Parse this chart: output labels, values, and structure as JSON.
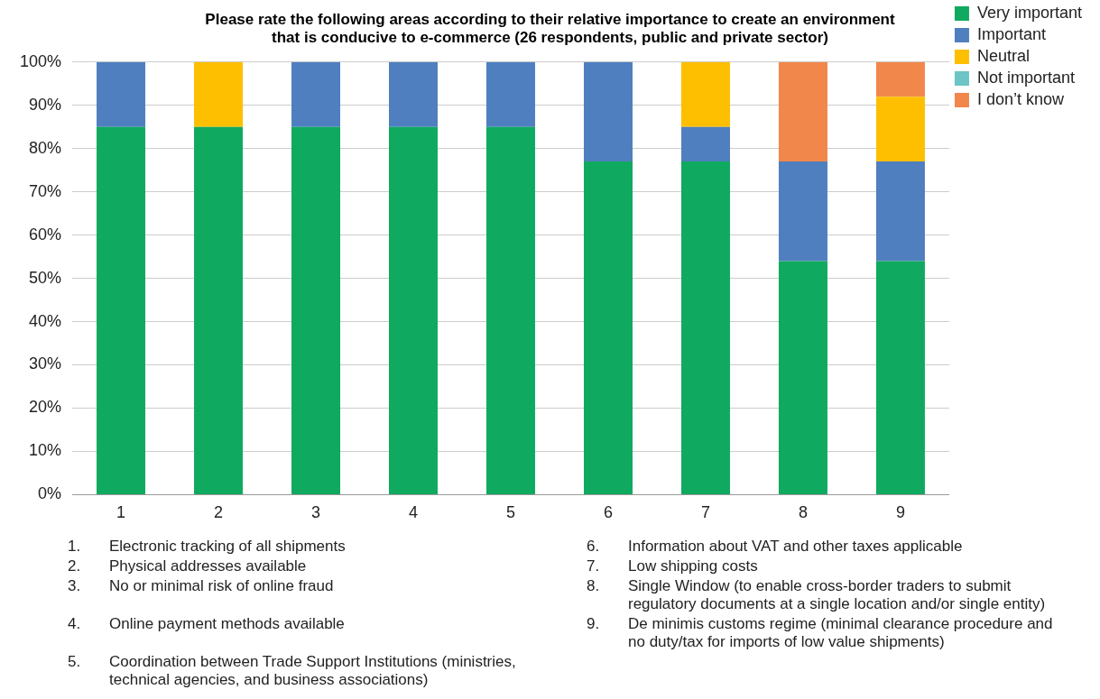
{
  "chart_data": {
    "type": "bar",
    "stacked": true,
    "title": "Please rate the following areas according to their relative importance to create an environment\nthat is conducive to e-commerce (26 respondents, public and private sector)",
    "categories": [
      "1",
      "2",
      "3",
      "4",
      "5",
      "6",
      "7",
      "8",
      "9"
    ],
    "series": [
      {
        "name": "Very important",
        "color": "#0faa5f",
        "values": [
          85,
          85,
          85,
          85,
          85,
          77,
          77,
          54,
          54
        ]
      },
      {
        "name": "Important",
        "color": "#4f7fbf",
        "values": [
          15,
          0,
          15,
          15,
          15,
          23,
          8,
          23,
          23
        ]
      },
      {
        "name": "Neutral",
        "color": "#fdbf00",
        "values": [
          0,
          15,
          0,
          0,
          0,
          0,
          15,
          0,
          15
        ]
      },
      {
        "name": "Not important",
        "color": "#6cc4c4",
        "values": [
          0,
          0,
          0,
          0,
          0,
          0,
          0,
          0,
          0
        ]
      },
      {
        "name": "I don’t know",
        "color": "#f2874b",
        "values": [
          0,
          0,
          0,
          0,
          0,
          0,
          0,
          23,
          8
        ]
      }
    ],
    "ylim": [
      0,
      100
    ],
    "yticks": [
      {
        "value": 0,
        "label": "0%"
      },
      {
        "value": 10,
        "label": "10%"
      },
      {
        "value": 20,
        "label": "20%"
      },
      {
        "value": 30,
        "label": "30%"
      },
      {
        "value": 40,
        "label": "40%"
      },
      {
        "value": 50,
        "label": "50%"
      },
      {
        "value": 60,
        "label": "60%"
      },
      {
        "value": 70,
        "label": "70%"
      },
      {
        "value": 80,
        "label": "80%"
      },
      {
        "value": 90,
        "label": "90%"
      },
      {
        "value": 100,
        "label": "100%"
      }
    ],
    "grid": "y",
    "legend": "top right",
    "annotations": [
      "1. Electronic tracking of all shipments",
      "2. Physical addresses available",
      "3. No or minimal risk of online fraud",
      "4. Online payment methods available",
      "5. Coordination between Trade Support Institutions (ministries, technical agencies, and business associations)",
      "6. Information about VAT and other taxes applicable",
      "7. Low shipping costs",
      "8. Single Window (to enable cross-border traders to submit regulatory documents at a single location and/or single entity)",
      "9. De minimis customs regime (minimal clearance procedure and no duty/tax for imports of low value shipments)"
    ]
  }
}
